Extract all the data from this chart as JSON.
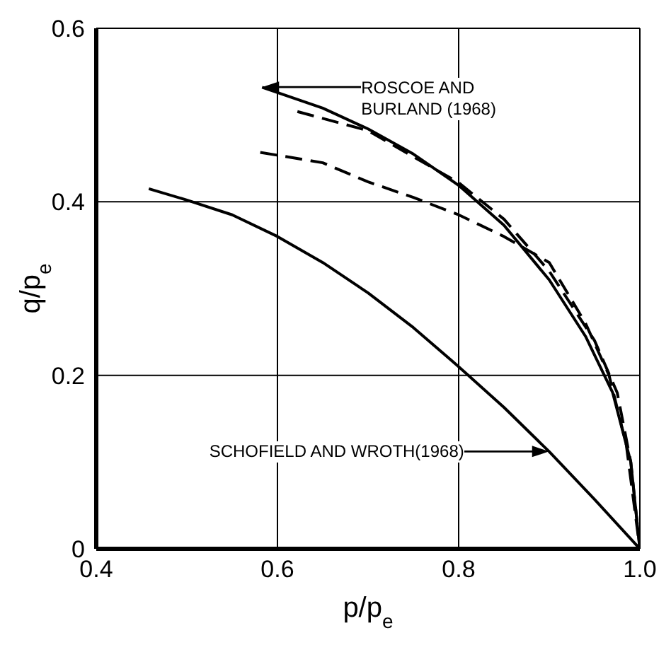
{
  "chart_data": {
    "type": "line",
    "xlabel": "p/p$_{e}$",
    "ylabel": "q/p$_{e}$",
    "xlim": [
      0.4,
      1.0
    ],
    "xticks": [
      0.4,
      0.6,
      0.8,
      {
        "value": 1.0,
        "label": "1.0"
      }
    ],
    "ylim": [
      0,
      0.6
    ],
    "yticks": [
      0,
      0.2,
      0.4,
      0.6
    ],
    "grid": true,
    "series": [
      {
        "color": "#000000",
        "line_style": "solid",
        "x": [
          0.458,
          0.5,
          0.55,
          0.6,
          0.65,
          0.7,
          0.75,
          0.8,
          0.85,
          0.9,
          0.95,
          1.0
        ],
        "values": [
          0.415,
          0.402,
          0.385,
          0.36,
          0.33,
          0.295,
          0.255,
          0.21,
          0.163,
          0.112,
          0.057,
          0
        ]
      },
      {
        "color": "#000000",
        "line_style": "solid",
        "x": [
          0.583,
          0.65,
          0.7,
          0.75,
          0.8,
          0.85,
          0.9,
          0.94,
          0.97,
          0.99,
          1.0
        ],
        "values": [
          0.532,
          0.508,
          0.484,
          0.455,
          0.419,
          0.373,
          0.31,
          0.245,
          0.18,
          0.1,
          0
        ]
      },
      {
        "color": "#000000",
        "line_style": "dashed",
        "x": [
          0.622,
          0.7,
          0.8,
          0.85,
          0.9,
          0.95,
          0.975,
          0.99,
          1.0
        ],
        "values": [
          0.504,
          0.482,
          0.422,
          0.38,
          0.32,
          0.24,
          0.18,
          0.1,
          0
        ]
      },
      {
        "color": "#000000",
        "line_style": "dashed",
        "x": [
          0.581,
          0.65,
          0.7,
          0.75,
          0.8,
          0.85,
          0.9,
          0.94,
          0.966,
          0.985,
          1.0
        ],
        "values": [
          0.457,
          0.445,
          0.423,
          0.405,
          0.385,
          0.36,
          0.33,
          0.26,
          0.2,
          0.12,
          0
        ]
      }
    ],
    "annotations": [
      "ROSCOE AND BURLAND (1968)",
      "SCHOFIELD AND WROTH(1968)"
    ]
  }
}
